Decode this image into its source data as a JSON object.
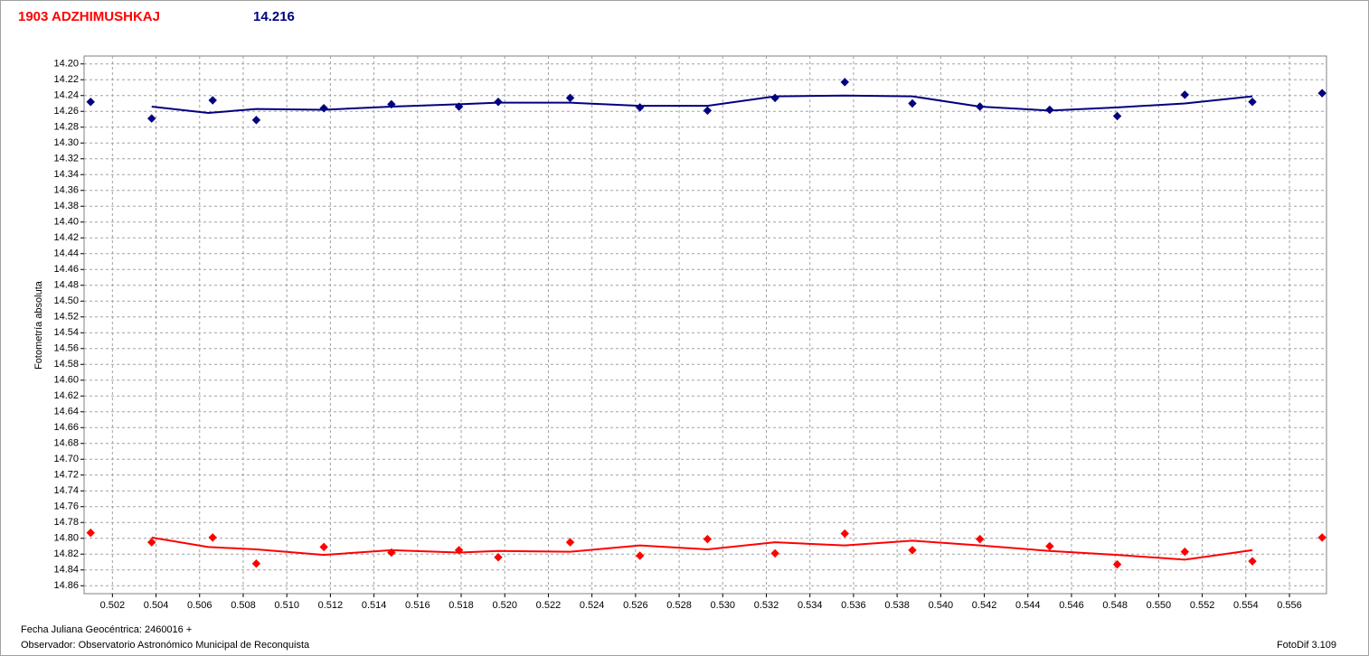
{
  "chart_data": {
    "type": "scatter",
    "title": "1903 ADZHIMUSHKAJ",
    "subtitle": "14.216",
    "title_color": "#ff0000",
    "subtitle_color": "#000080",
    "y_label": "Fotometría absoluta",
    "x_label": "Fecha Juliana Geocéntrica: 2460016 +",
    "observer": "Observador: Observatorio Astronómico Municipal de Reconquista",
    "software": "FotoDif 3.109",
    "xlim": [
      0.5007,
      0.5577
    ],
    "ylim": [
      14.19,
      14.87
    ],
    "y_inverted": true,
    "grid": true,
    "xticks": [
      0.502,
      0.504,
      0.506,
      0.508,
      {
        "value": 0.51,
        "label": "0.510"
      },
      0.512,
      0.514,
      0.516,
      0.518,
      {
        "value": 0.52,
        "label": "0.520"
      },
      0.522,
      0.524,
      0.526,
      0.528,
      {
        "value": 0.53,
        "label": "0.530"
      },
      0.532,
      0.534,
      0.536,
      0.538,
      {
        "value": 0.54,
        "label": "0.540"
      },
      0.542,
      0.544,
      0.546,
      0.548,
      {
        "value": 0.55,
        "label": "0.550"
      },
      0.552,
      0.554,
      0.556
    ],
    "yticks": [
      {
        "value": 14.2,
        "label": "14.20"
      },
      14.22,
      14.24,
      14.26,
      14.28,
      {
        "value": 14.3,
        "label": "14.30"
      },
      14.32,
      14.34,
      14.36,
      14.38,
      {
        "value": 14.4,
        "label": "14.40"
      },
      14.42,
      14.44,
      14.46,
      14.48,
      {
        "value": 14.5,
        "label": "14.50"
      },
      14.52,
      14.54,
      14.56,
      14.58,
      {
        "value": 14.6,
        "label": "14.60"
      },
      14.62,
      14.64,
      14.66,
      14.68,
      {
        "value": 14.7,
        "label": "14.70"
      },
      14.72,
      14.74,
      14.76,
      14.78,
      {
        "value": 14.8,
        "label": "14.80"
      },
      14.82,
      14.84,
      14.86
    ],
    "series": [
      {
        "color": "#000080",
        "mode": "markers",
        "x": [
          0.501,
          0.5038,
          0.5066,
          0.5086,
          0.5117,
          0.5148,
          0.5179,
          0.5197,
          0.523,
          0.5262,
          0.5293,
          0.5324,
          0.5356,
          0.5387,
          0.5418,
          0.545,
          0.5481,
          0.5512,
          0.5543,
          0.5575
        ],
        "values": [
          14.248,
          14.269,
          14.246,
          14.271,
          14.256,
          14.251,
          14.254,
          14.248,
          14.243,
          14.255,
          14.259,
          14.243,
          14.223,
          14.25,
          14.254,
          14.258,
          14.266,
          14.239,
          14.248,
          14.237
        ]
      },
      {
        "color": "#000080",
        "mode": "line",
        "x": [
          0.5038,
          0.5064,
          0.5086,
          0.5117,
          0.5148,
          0.5179,
          0.5197,
          0.523,
          0.5262,
          0.5293,
          0.5324,
          0.5356,
          0.5387,
          0.5418,
          0.545,
          0.5481,
          0.5512,
          0.5543
        ],
        "values": [
          14.254,
          14.262,
          14.257,
          14.258,
          14.254,
          14.251,
          14.249,
          14.249,
          14.253,
          14.253,
          14.241,
          14.24,
          14.241,
          14.254,
          14.259,
          14.255,
          14.25,
          14.241
        ]
      },
      {
        "color": "#ff0000",
        "mode": "markers",
        "x": [
          0.501,
          0.5038,
          0.5066,
          0.5086,
          0.5117,
          0.5148,
          0.5179,
          0.5197,
          0.523,
          0.5262,
          0.5293,
          0.5324,
          0.5356,
          0.5387,
          0.5418,
          0.545,
          0.5481,
          0.5512,
          0.5543,
          0.5575
        ],
        "values": [
          14.793,
          14.805,
          14.799,
          14.832,
          14.811,
          14.818,
          14.815,
          14.824,
          14.805,
          14.822,
          14.801,
          14.819,
          14.794,
          14.815,
          14.801,
          14.81,
          14.833,
          14.817,
          14.829,
          14.799
        ]
      },
      {
        "color": "#ff0000",
        "mode": "line",
        "x": [
          0.5038,
          0.5064,
          0.5086,
          0.5117,
          0.5148,
          0.5179,
          0.5197,
          0.523,
          0.5262,
          0.5293,
          0.5324,
          0.5356,
          0.5387,
          0.5418,
          0.545,
          0.5481,
          0.5512,
          0.5543
        ],
        "values": [
          14.799,
          14.811,
          14.814,
          14.821,
          14.815,
          14.818,
          14.816,
          14.817,
          14.809,
          14.814,
          14.805,
          14.809,
          14.803,
          14.809,
          14.816,
          14.821,
          14.827,
          14.815
        ]
      }
    ]
  }
}
